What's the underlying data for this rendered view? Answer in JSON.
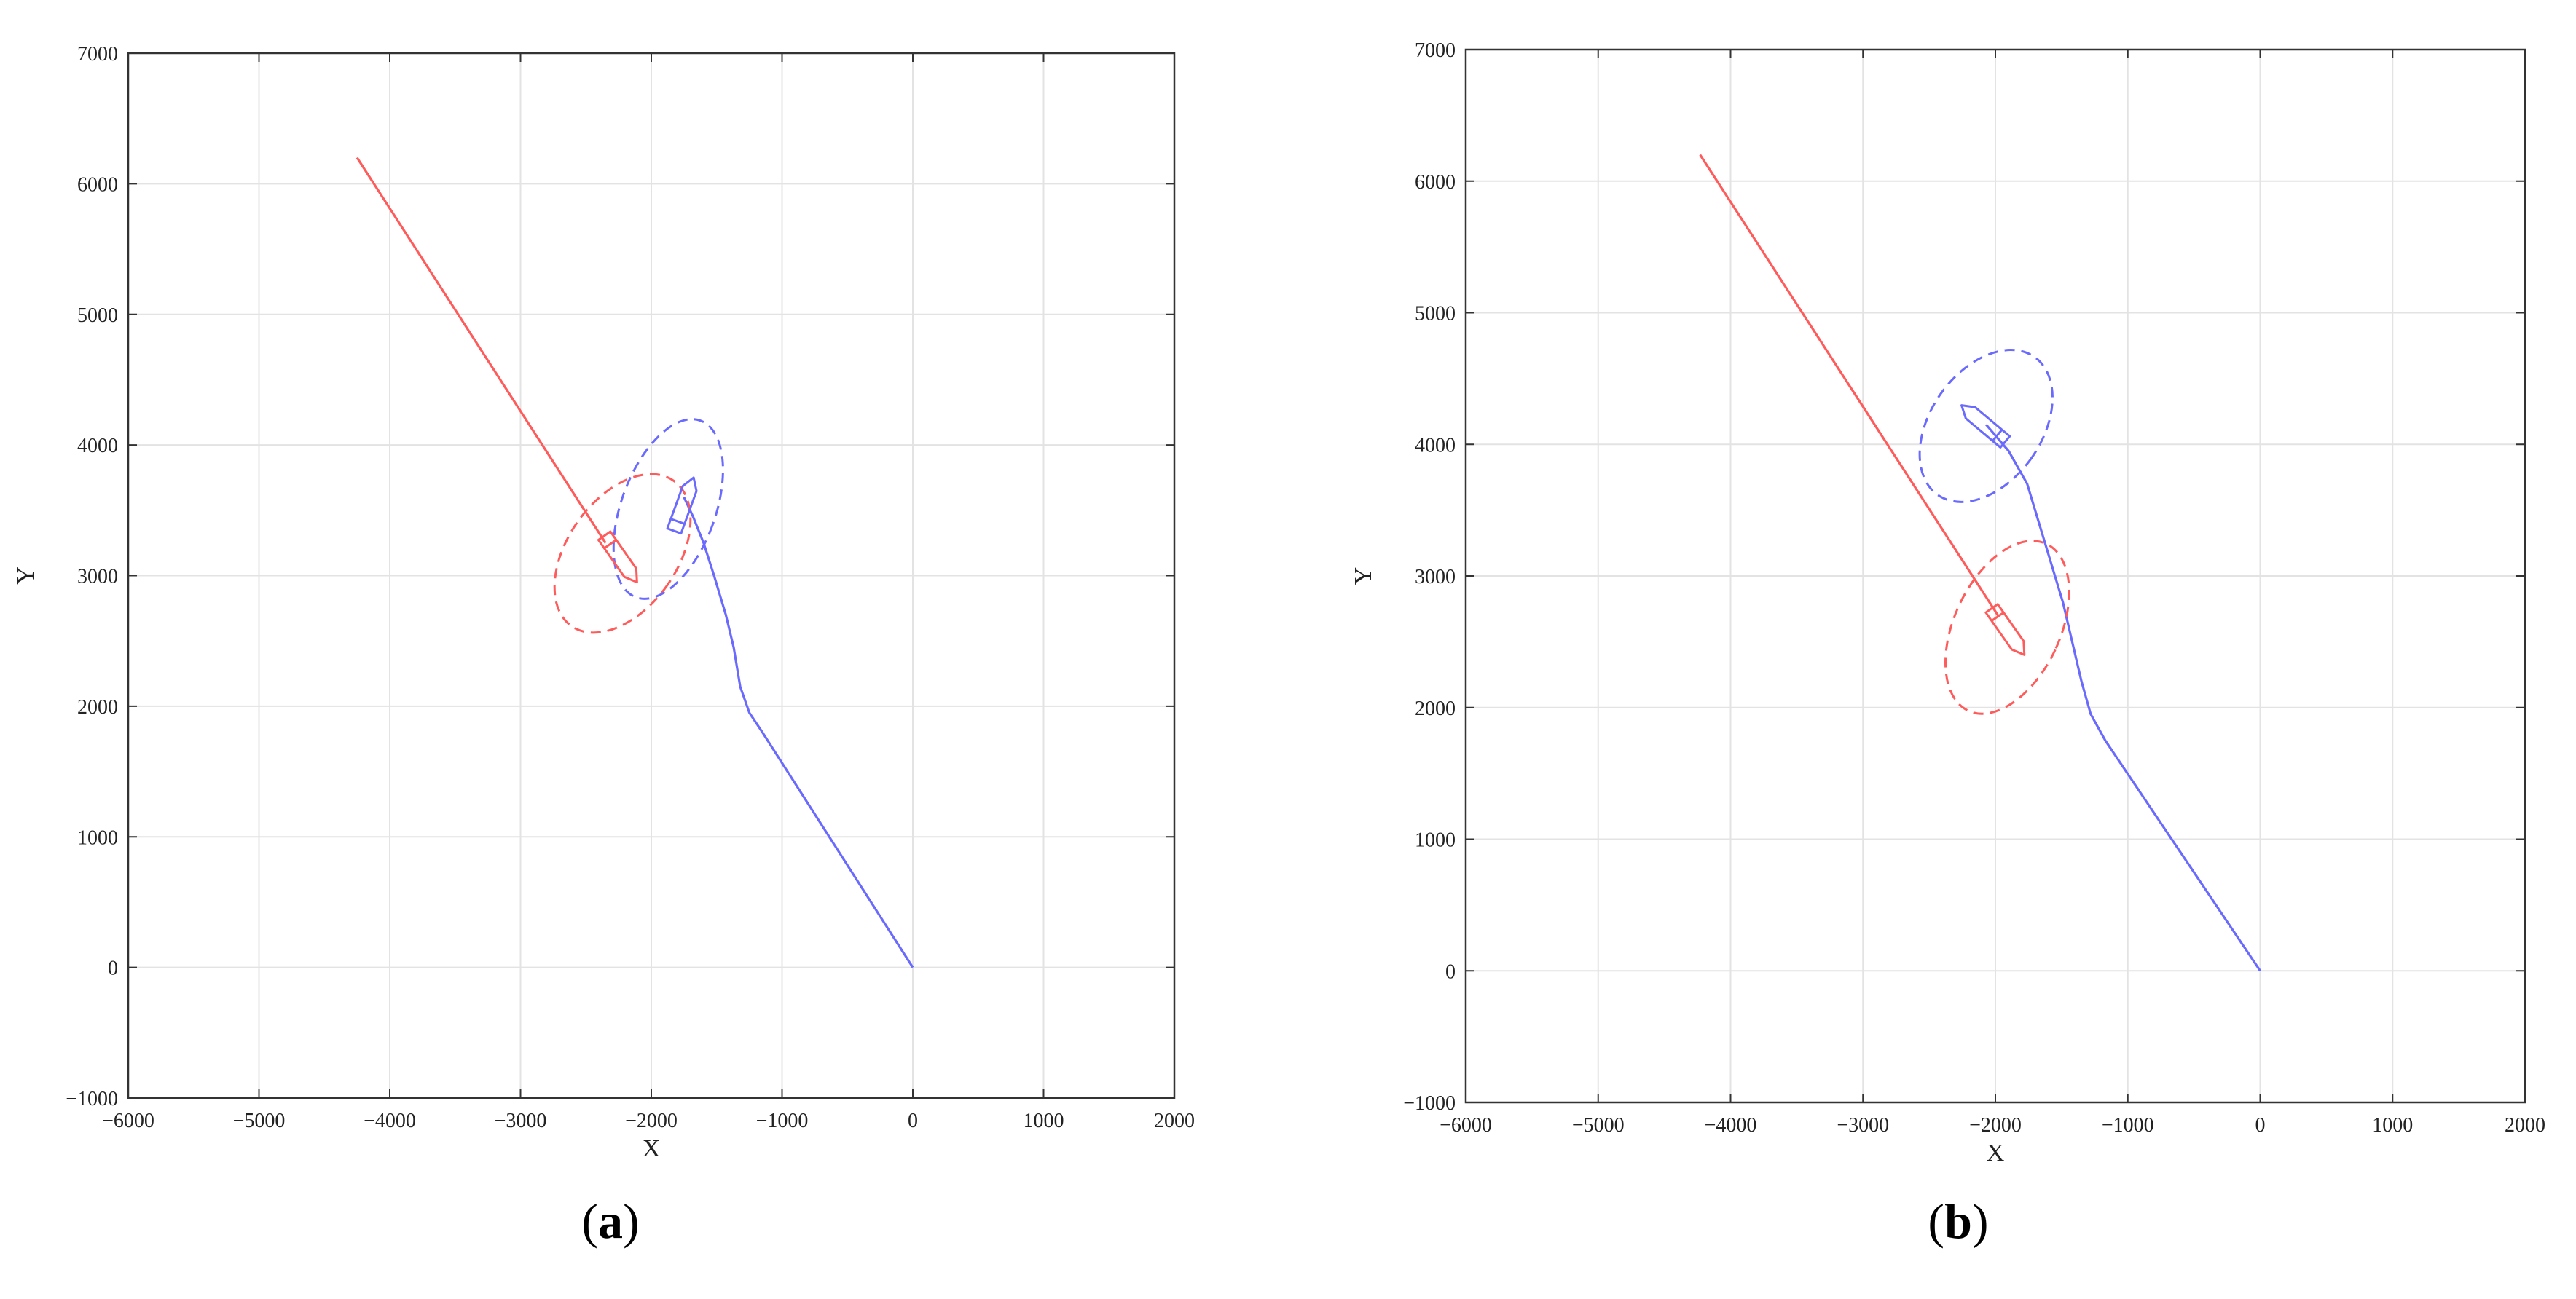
{
  "chart_data": [
    {
      "type": "line",
      "caption_letter": "a",
      "xlabel": "X",
      "ylabel": "Y",
      "xlim": [
        -6000,
        2000
      ],
      "ylim": [
        -1000,
        7000
      ],
      "xticks": [
        -6000,
        -5000,
        -4000,
        -3000,
        -2000,
        -1000,
        0,
        1000,
        2000
      ],
      "yticks": [
        -1000,
        0,
        1000,
        2000,
        3000,
        4000,
        5000,
        6000,
        7000
      ],
      "grid": true,
      "colors": {
        "red": "#ff5b5b",
        "blue": "#6a6aff"
      },
      "series": [
        {
          "color": "red",
          "style": "solid",
          "x": [
            -4250,
            -2350
          ],
          "y": [
            6200,
            3250
          ]
        },
        {
          "color": "blue",
          "style": "solid",
          "x": [
            0,
            -1150,
            -1250,
            -1320,
            -1370,
            -1430,
            -1520,
            -1600,
            -1680,
            -1750
          ],
          "y": [
            0,
            1800,
            1950,
            2150,
            2450,
            2700,
            3000,
            3250,
            3450,
            3600
          ]
        },
        {
          "color": "red",
          "style": "dashed",
          "ellipse": {
            "cx": -2220,
            "cy": 3170,
            "rx": 420,
            "ry": 680,
            "angle": 35
          }
        },
        {
          "color": "blue",
          "style": "dashed",
          "ellipse": {
            "cx": -1870,
            "cy": 3510,
            "rx": 360,
            "ry": 720,
            "angle": 20
          }
        }
      ],
      "ships": [
        {
          "color": "red",
          "x": -2250,
          "y": 3150,
          "heading": 145
        },
        {
          "color": "blue",
          "x": -1760,
          "y": 3520,
          "heading": 20
        }
      ]
    },
    {
      "type": "line",
      "caption_letter": "b",
      "xlabel": "X",
      "ylabel": "Y",
      "xlim": [
        -6000,
        2000
      ],
      "ylim": [
        -1000,
        7000
      ],
      "xticks": [
        -6000,
        -5000,
        -4000,
        -3000,
        -2000,
        -1000,
        0,
        1000,
        2000
      ],
      "yticks": [
        -1000,
        0,
        1000,
        2000,
        3000,
        4000,
        5000,
        6000,
        7000
      ],
      "grid": true,
      "colors": {
        "red": "#ff5b5b",
        "blue": "#6a6aff"
      },
      "series": [
        {
          "color": "red",
          "style": "solid",
          "x": [
            -4230,
            -1980
          ],
          "y": [
            6200,
            2700
          ]
        },
        {
          "color": "blue",
          "style": "solid",
          "x": [
            0,
            -1170,
            -1280,
            -1350,
            -1420,
            -1490,
            -1580,
            -1670,
            -1760,
            -1900,
            -2070
          ],
          "y": [
            0,
            1750,
            1950,
            2200,
            2500,
            2800,
            3100,
            3400,
            3700,
            3950,
            4150
          ]
        },
        {
          "color": "red",
          "style": "dashed",
          "ellipse": {
            "cx": -1910,
            "cy": 2610,
            "rx": 400,
            "ry": 700,
            "angle": 25
          }
        },
        {
          "color": "blue",
          "style": "dashed",
          "ellipse": {
            "cx": -2070,
            "cy": 4140,
            "rx": 420,
            "ry": 640,
            "angle": 35
          }
        }
      ],
      "ships": [
        {
          "color": "red",
          "x": -1920,
          "y": 2600,
          "heading": 145
        },
        {
          "color": "blue",
          "x": -2070,
          "y": 4140,
          "heading": 310
        }
      ]
    }
  ]
}
